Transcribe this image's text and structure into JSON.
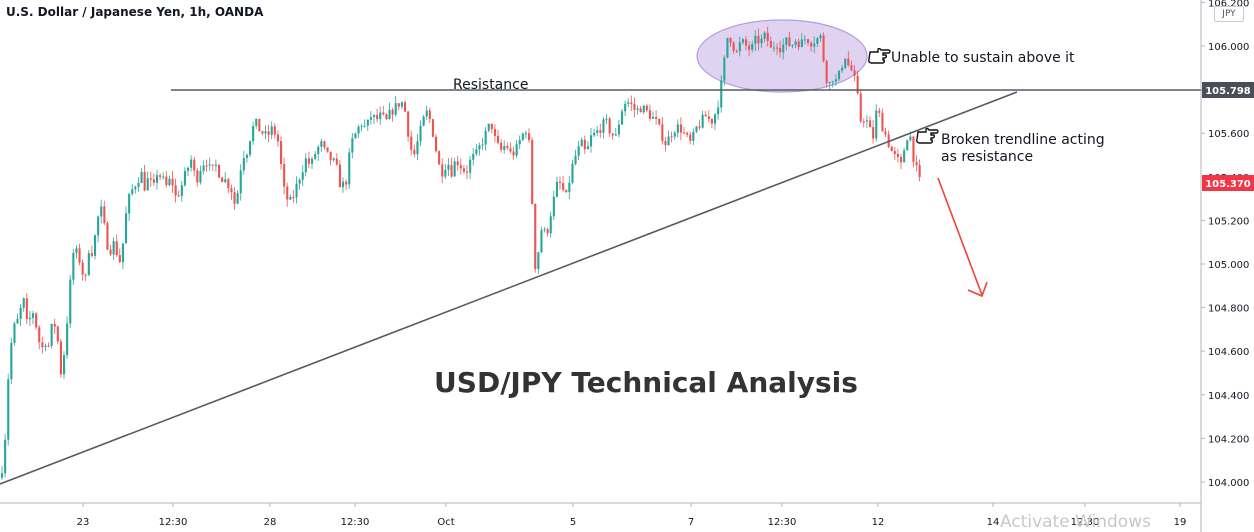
{
  "header": {
    "title": "U.S. Dollar / Japanese Yen, 1h, OANDA",
    "currency_badge": "JPY"
  },
  "colors": {
    "up": "#26a69a",
    "down": "#ef5350",
    "line": "#575a63",
    "arrow": "#ef4334",
    "ellipse_fill": "#d5c4ee",
    "ellipse_stroke": "#b69be0",
    "last_price_bg": "#f23645"
  },
  "watermark": "Activate Windows",
  "chart_data": {
    "type": "candlestick",
    "title": "USD/JPY Technical Analysis",
    "ylim": [
      103.95,
      106.25
    ],
    "y_ticks": [
      "104.000",
      "104.200",
      "104.400",
      "104.600",
      "104.800",
      "105.000",
      "105.200",
      "105.400",
      "105.600",
      "105.800",
      "106.000",
      "106.200"
    ],
    "x_ticks": [
      "23",
      "12:30",
      "28",
      "12:30",
      "Oct",
      "5",
      "7",
      "12:30",
      "12",
      "14",
      "12:30",
      "19"
    ],
    "price_labels": {
      "resistance_level": "105.798",
      "last_price": "105.370"
    },
    "series": [
      {
        "name": "price",
        "path": [
          [
            0,
            104.02
          ],
          [
            4,
            104.2
          ],
          [
            8,
            104.55
          ],
          [
            12,
            104.7
          ],
          [
            18,
            104.75
          ],
          [
            22,
            104.85
          ],
          [
            26,
            104.72
          ],
          [
            32,
            104.78
          ],
          [
            36,
            104.7
          ],
          [
            40,
            104.6
          ],
          [
            44,
            104.65
          ],
          [
            48,
            104.62
          ],
          [
            52,
            104.75
          ],
          [
            56,
            104.68
          ],
          [
            60,
            104.5
          ],
          [
            64,
            104.62
          ],
          [
            68,
            104.85
          ],
          [
            72,
            105.05
          ],
          [
            76,
            105.05
          ],
          [
            80,
            105.0
          ],
          [
            84,
            104.9
          ],
          [
            88,
            105.08
          ],
          [
            92,
            105.05
          ],
          [
            96,
            105.2
          ],
          [
            100,
            105.25
          ],
          [
            104,
            105.15
          ],
          [
            108,
            105.05
          ],
          [
            112,
            105.1
          ],
          [
            116,
            105.05
          ],
          [
            120,
            105.0
          ],
          [
            124,
            105.2
          ],
          [
            128,
            105.3
          ],
          [
            132,
            105.35
          ],
          [
            136,
            105.38
          ],
          [
            140,
            105.42
          ],
          [
            144,
            105.35
          ],
          [
            148,
            105.4
          ],
          [
            152,
            105.33
          ],
          [
            156,
            105.42
          ],
          [
            160,
            105.4
          ],
          [
            166,
            105.35
          ],
          [
            170,
            105.4
          ],
          [
            175,
            105.3
          ],
          [
            180,
            105.35
          ],
          [
            185,
            105.42
          ],
          [
            190,
            105.48
          ],
          [
            195,
            105.38
          ],
          [
            200,
            105.45
          ],
          [
            205,
            105.48
          ],
          [
            210,
            105.42
          ],
          [
            215,
            105.45
          ],
          [
            220,
            105.4
          ],
          [
            225,
            105.38
          ],
          [
            230,
            105.35
          ],
          [
            235,
            105.25
          ],
          [
            238,
            105.4
          ],
          [
            242,
            105.5
          ],
          [
            246,
            105.52
          ],
          [
            250,
            105.6
          ],
          [
            254,
            105.65
          ],
          [
            258,
            105.62
          ],
          [
            262,
            105.6
          ],
          [
            266,
            105.58
          ],
          [
            270,
            105.62
          ],
          [
            274,
            105.6
          ],
          [
            278,
            105.55
          ],
          [
            282,
            105.35
          ],
          [
            286,
            105.3
          ],
          [
            290,
            105.28
          ],
          [
            295,
            105.35
          ],
          [
            300,
            105.42
          ],
          [
            305,
            105.48
          ],
          [
            310,
            105.45
          ],
          [
            315,
            105.52
          ],
          [
            320,
            105.55
          ],
          [
            325,
            105.5
          ],
          [
            330,
            105.48
          ],
          [
            335,
            105.45
          ],
          [
            340,
            105.35
          ],
          [
            345,
            105.38
          ],
          [
            350,
            105.55
          ],
          [
            355,
            105.6
          ],
          [
            360,
            105.65
          ],
          [
            365,
            105.62
          ],
          [
            370,
            105.68
          ],
          [
            375,
            105.66
          ],
          [
            380,
            105.68
          ],
          [
            385,
            105.65
          ],
          [
            390,
            105.7
          ],
          [
            395,
            105.72
          ],
          [
            400,
            105.75
          ],
          [
            404,
            105.7
          ],
          [
            408,
            105.58
          ],
          [
            412,
            105.48
          ],
          [
            416,
            105.55
          ],
          [
            420,
            105.62
          ],
          [
            425,
            105.7
          ],
          [
            430,
            105.65
          ],
          [
            434,
            105.55
          ],
          [
            438,
            105.45
          ],
          [
            442,
            105.42
          ],
          [
            446,
            105.48
          ],
          [
            450,
            105.42
          ],
          [
            455,
            105.48
          ],
          [
            460,
            105.45
          ],
          [
            465,
            105.42
          ],
          [
            470,
            105.48
          ],
          [
            475,
            105.5
          ],
          [
            480,
            105.55
          ],
          [
            485,
            105.6
          ],
          [
            490,
            105.65
          ],
          [
            495,
            105.55
          ],
          [
            500,
            105.52
          ],
          [
            505,
            105.55
          ],
          [
            510,
            105.5
          ],
          [
            515,
            105.52
          ],
          [
            520,
            105.58
          ],
          [
            525,
            105.62
          ],
          [
            528,
            105.55
          ],
          [
            531,
            105.3
          ],
          [
            533,
            104.97
          ],
          [
            537,
            105.05
          ],
          [
            541,
            105.18
          ],
          [
            545,
            105.12
          ],
          [
            549,
            105.22
          ],
          [
            553,
            105.3
          ],
          [
            557,
            105.38
          ],
          [
            561,
            105.35
          ],
          [
            565,
            105.3
          ],
          [
            569,
            105.4
          ],
          [
            573,
            105.48
          ],
          [
            577,
            105.52
          ],
          [
            581,
            105.55
          ],
          [
            585,
            105.5
          ],
          [
            590,
            105.58
          ],
          [
            595,
            105.6
          ],
          [
            600,
            105.63
          ],
          [
            605,
            105.65
          ],
          [
            610,
            105.6
          ],
          [
            615,
            105.58
          ],
          [
            620,
            105.7
          ],
          [
            625,
            105.75
          ],
          [
            630,
            105.73
          ],
          [
            635,
            105.7
          ],
          [
            640,
            105.72
          ],
          [
            645,
            105.7
          ],
          [
            650,
            105.68
          ],
          [
            655,
            105.65
          ],
          [
            660,
            105.6
          ],
          [
            665,
            105.55
          ],
          [
            670,
            105.6
          ],
          [
            675,
            105.63
          ],
          [
            680,
            105.62
          ],
          [
            685,
            105.58
          ],
          [
            690,
            105.55
          ],
          [
            695,
            105.62
          ],
          [
            700,
            105.65
          ],
          [
            705,
            105.68
          ],
          [
            710,
            105.65
          ],
          [
            715,
            105.7
          ],
          [
            719,
            105.78
          ],
          [
            723,
            105.92
          ],
          [
            727,
            106.06
          ],
          [
            731,
            106.02
          ],
          [
            735,
            105.96
          ],
          [
            740,
            106.02
          ],
          [
            745,
            106.0
          ],
          [
            750,
            105.98
          ],
          [
            755,
            106.03
          ],
          [
            760,
            106.02
          ],
          [
            765,
            106.05
          ],
          [
            770,
            105.98
          ],
          [
            775,
            106.02
          ],
          [
            780,
            105.99
          ],
          [
            785,
            106.02
          ],
          [
            790,
            106.0
          ],
          [
            795,
            106.03
          ],
          [
            800,
            106.01
          ],
          [
            805,
            106.04
          ],
          [
            810,
            106.02
          ],
          [
            815,
            106.03
          ],
          [
            820,
            106.04
          ],
          [
            824,
            105.88
          ],
          [
            828,
            105.82
          ],
          [
            832,
            105.86
          ],
          [
            836,
            105.83
          ],
          [
            840,
            105.9
          ],
          [
            844,
            105.96
          ],
          [
            848,
            105.9
          ],
          [
            852,
            105.88
          ],
          [
            856,
            105.78
          ],
          [
            860,
            105.65
          ],
          [
            864,
            105.68
          ],
          [
            868,
            105.62
          ],
          [
            872,
            105.58
          ],
          [
            876,
            105.72
          ],
          [
            880,
            105.65
          ],
          [
            884,
            105.6
          ],
          [
            888,
            105.55
          ],
          [
            892,
            105.5
          ],
          [
            896,
            105.48
          ],
          [
            900,
            105.45
          ],
          [
            904,
            105.55
          ],
          [
            908,
            105.62
          ],
          [
            912,
            105.5
          ],
          [
            916,
            105.42
          ],
          [
            919,
            105.37
          ]
        ]
      }
    ],
    "annotations": {
      "resistance_label": "Resistance",
      "top_callout": "Unable to sustain above it",
      "mid_callout_line1": "Broken trendline acting",
      "mid_callout_line2": "as resistance"
    }
  }
}
